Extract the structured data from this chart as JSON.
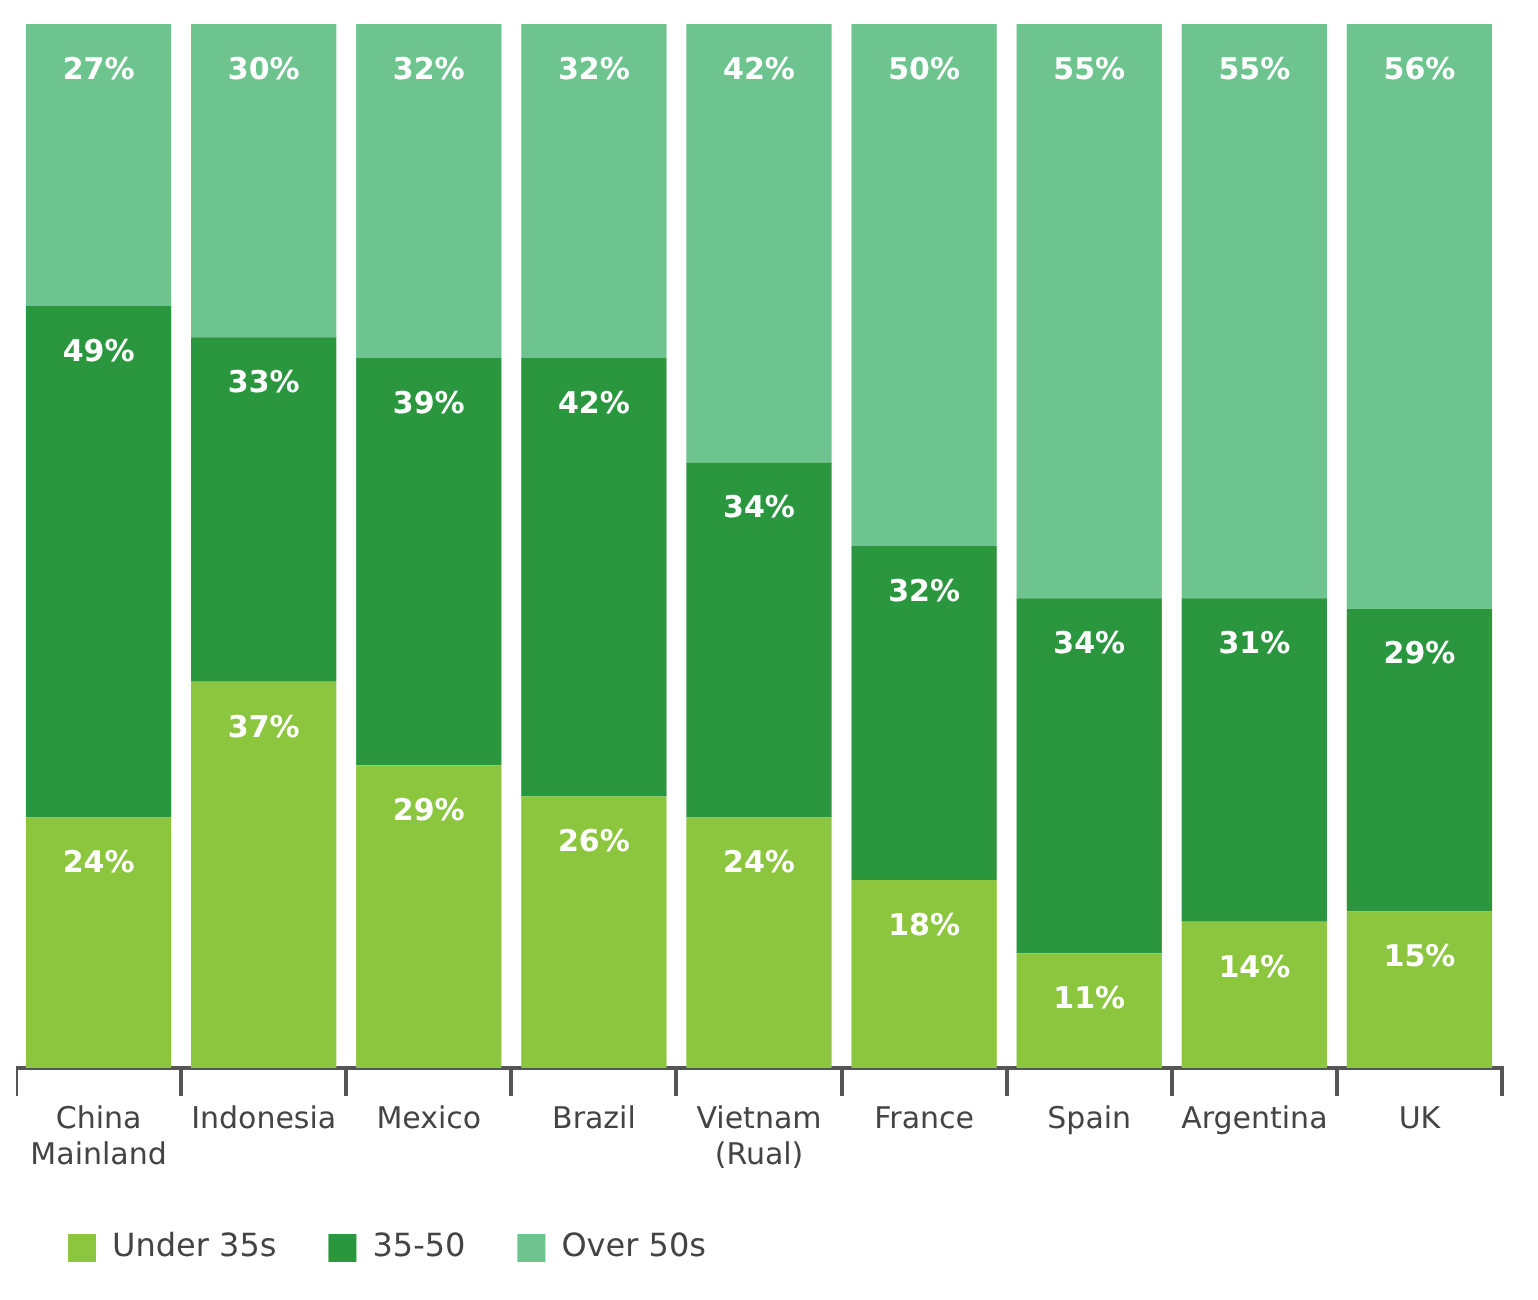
{
  "chart_data": {
    "type": "bar",
    "stacked": true,
    "categories": [
      "China Mainland",
      "Indonesia",
      "Mexico",
      "Brazil",
      "Vietnam (Rual)",
      "France",
      "Spain",
      "Argentina",
      "UK"
    ],
    "series": [
      {
        "name": "Under 35s",
        "color": "#8cc63f",
        "values": [
          24,
          37,
          29,
          26,
          24,
          18,
          11,
          14,
          15
        ],
        "value_labels": [
          "24%",
          "37%",
          "29%",
          "26%",
          "24%",
          "18%",
          "11%",
          "14%",
          "15%"
        ]
      },
      {
        "name": "35-50",
        "color": "#2a963e",
        "values": [
          49,
          33,
          39,
          42,
          34,
          32,
          34,
          31,
          29
        ],
        "value_labels": [
          "49%",
          "33%",
          "39%",
          "42%",
          "34%",
          "32%",
          "34%",
          "31%",
          "29%"
        ]
      },
      {
        "name": "Over 50s",
        "color": "#6dc48e",
        "values": [
          27,
          30,
          32,
          32,
          42,
          50,
          55,
          55,
          56
        ],
        "value_labels": [
          "27%",
          "30%",
          "32%",
          "32%",
          "42%",
          "50%",
          "55%",
          "55%",
          "56%"
        ]
      }
    ],
    "ylim": [
      0,
      100
    ],
    "tick_labels": "x",
    "legend": "bottom left"
  }
}
